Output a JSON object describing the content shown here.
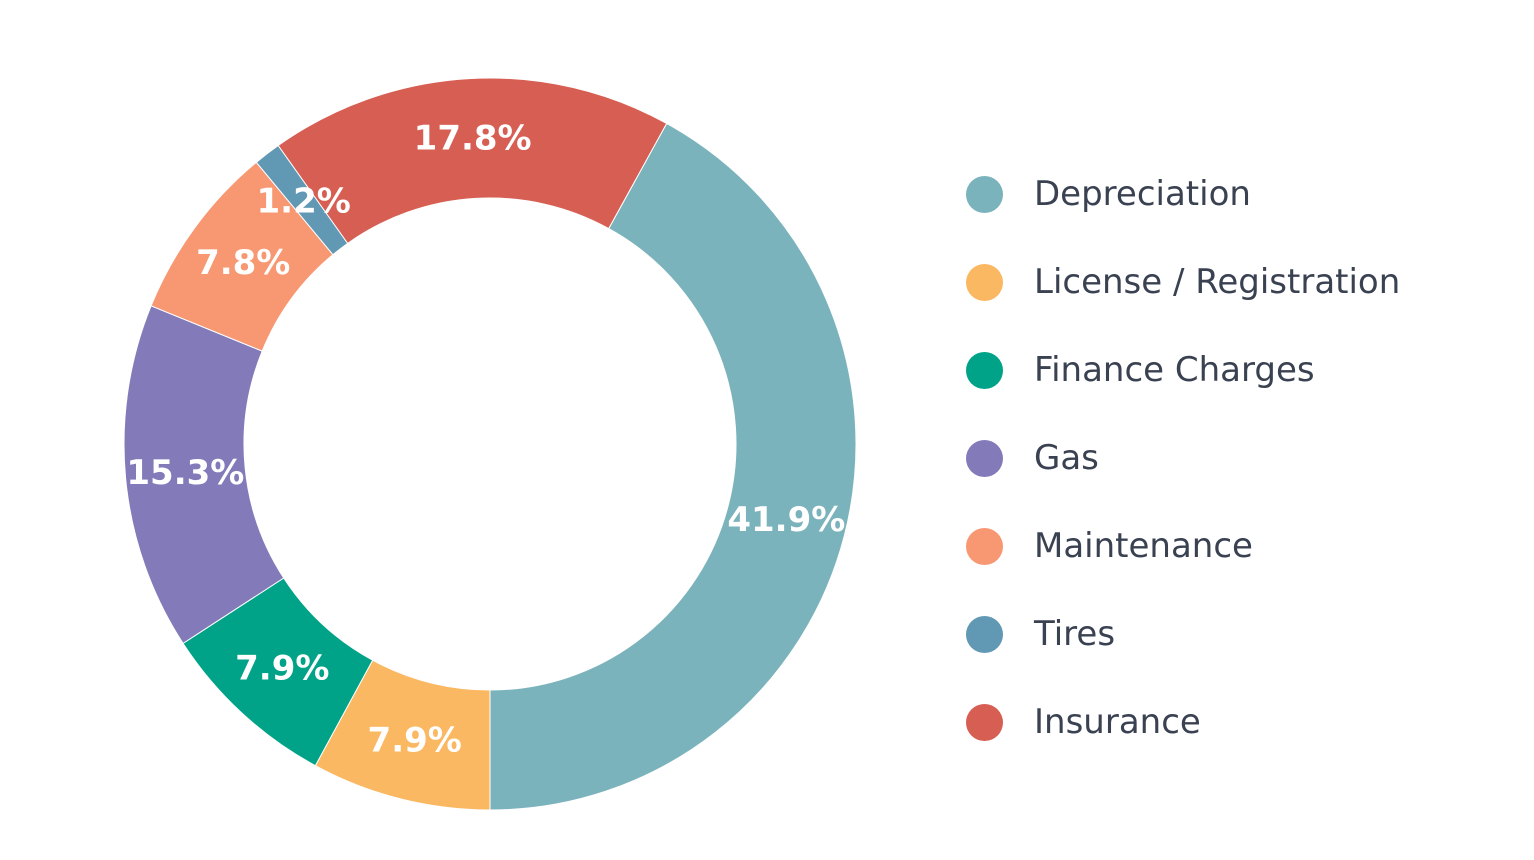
{
  "chart_data": {
    "type": "pie",
    "variant": "donut",
    "title": "",
    "categories": [
      "Depreciation",
      "License / Registration",
      "Finance Charges",
      "Gas",
      "Maintenance",
      "Tires",
      "Insurance"
    ],
    "values": [
      41.9,
      7.9,
      7.9,
      15.3,
      7.8,
      1.2,
      17.8
    ],
    "value_labels": [
      "41.9%",
      "7.9%",
      "7.9%",
      "15.3%",
      "7.8%",
      "1.2%",
      "17.8%"
    ],
    "unit": "%",
    "colors": [
      "#7bb3bc",
      "#fbb862",
      "#00a387",
      "#837bb9",
      "#f79872",
      "#6199b5",
      "#d75e52"
    ],
    "legend_position": "right"
  }
}
